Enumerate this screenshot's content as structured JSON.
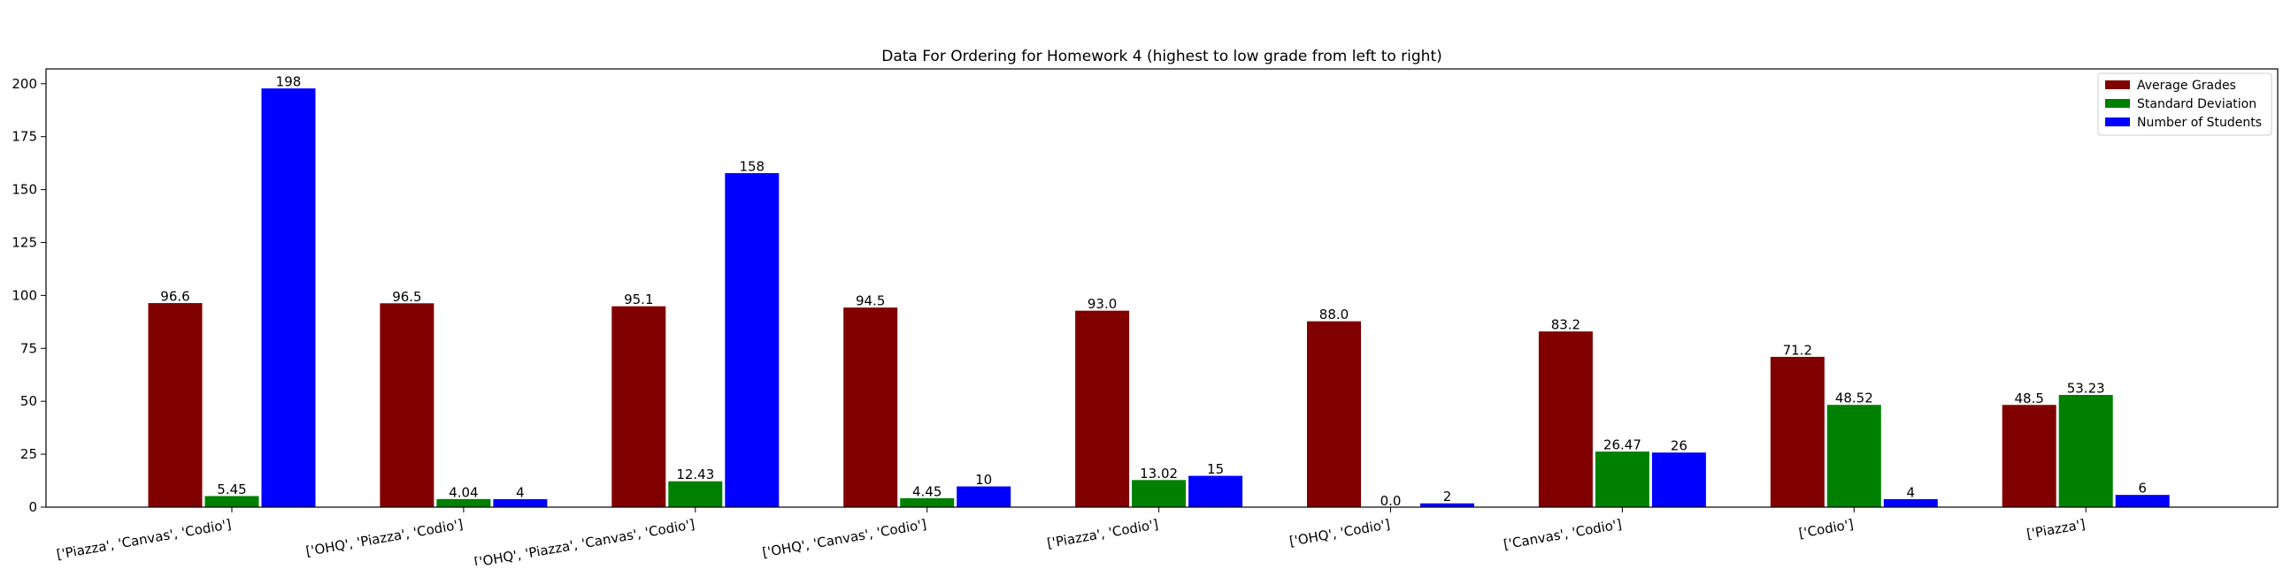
{
  "chart_data": {
    "type": "bar",
    "title": "Data For Ordering for Homework 4 (highest to low grade from left to right)",
    "xlabel": "",
    "ylabel": "",
    "ylim": [
      0,
      207
    ],
    "yticks": [
      0,
      25,
      50,
      75,
      100,
      125,
      150,
      175,
      200
    ],
    "categories": [
      "['Piazza', 'Canvas', 'Codio']",
      "['OHQ', 'Piazza', 'Codio']",
      "['OHQ', 'Piazza', 'Canvas', 'Codio']",
      "['OHQ', 'Canvas', 'Codio']",
      "['Piazza', 'Codio']",
      "['OHQ', 'Codio']",
      "['Canvas', 'Codio']",
      "['Codio']",
      "['Piazza']"
    ],
    "series": [
      {
        "name": "Average Grades",
        "color": "#800000",
        "values": [
          96.6,
          96.5,
          95.1,
          94.5,
          93.0,
          88.0,
          83.2,
          71.2,
          48.5
        ],
        "labels": [
          "96.6",
          "96.5",
          "95.1",
          "94.5",
          "93.0",
          "88.0",
          "83.2",
          "71.2",
          "48.5"
        ]
      },
      {
        "name": "Standard Deviation",
        "color": "#008000",
        "values": [
          5.45,
          4.04,
          12.43,
          4.45,
          13.02,
          0.0,
          26.47,
          48.52,
          53.23
        ],
        "labels": [
          "5.45",
          "4.04",
          "12.43",
          "4.45",
          "13.02",
          "0.0",
          "26.47",
          "48.52",
          "53.23"
        ]
      },
      {
        "name": "Number of Students",
        "color": "#0000ff",
        "values": [
          198,
          4,
          158,
          10,
          15,
          2,
          26,
          4,
          6
        ],
        "labels": [
          "198",
          "4",
          "158",
          "10",
          "15",
          "2",
          "26",
          "4",
          "6"
        ]
      }
    ],
    "legend_position": "top-right",
    "grid": false,
    "xtick_rotation": "slanted"
  }
}
